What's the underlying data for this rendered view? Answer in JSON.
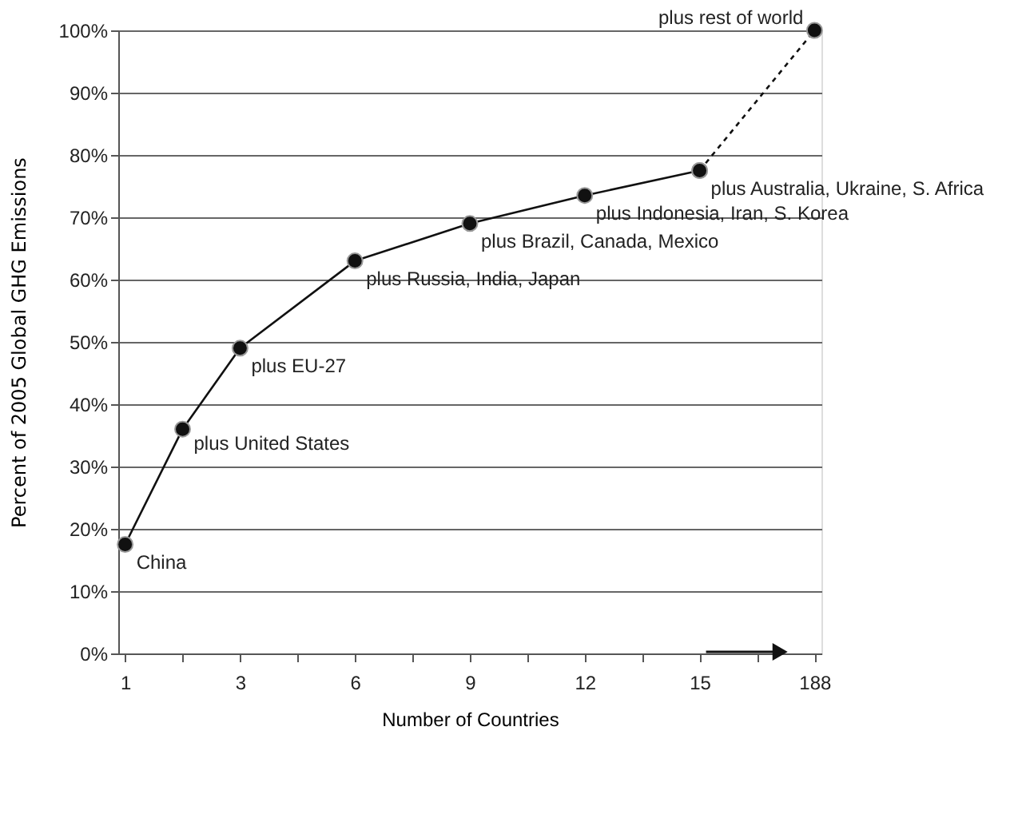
{
  "chart_data": {
    "type": "line",
    "xlabel": "Number of Countries",
    "ylabel": "Percent of 2005 Global GHG Emissions",
    "categories": [
      "1",
      null,
      "3",
      null,
      "6",
      null,
      "9",
      null,
      "12",
      null,
      "15",
      null,
      "188"
    ],
    "ylim": [
      0,
      100
    ],
    "yticks": [
      {
        "value": 0,
        "label": "0%"
      },
      {
        "value": 10,
        "label": "10%"
      },
      {
        "value": 20,
        "label": "20%"
      },
      {
        "value": 30,
        "label": "30%"
      },
      {
        "value": 40,
        "label": "40%"
      },
      {
        "value": 50,
        "label": "50%"
      },
      {
        "value": 60,
        "label": "60%"
      },
      {
        "value": 70,
        "label": "70%"
      },
      {
        "value": 80,
        "label": "80%"
      },
      {
        "value": 90,
        "label": "90%"
      },
      {
        "value": 100,
        "label": "100%"
      }
    ],
    "grid": "y",
    "marker": "circle",
    "series": [
      {
        "color": "#111111",
        "line_style": "solid",
        "values": [
          17.5,
          36,
          49,
          null,
          63,
          null,
          69,
          null,
          73.5,
          null,
          77.5,
          null,
          null
        ]
      },
      {
        "color": "#111111",
        "line_style": "dashed",
        "values": [
          null,
          null,
          null,
          null,
          null,
          null,
          null,
          null,
          null,
          null,
          77.5,
          null,
          100
        ]
      }
    ],
    "annotations": [
      {
        "text": "China",
        "x": "1",
        "y": 17.5
      },
      "plus United States",
      {
        "text": "plus  EU-27",
        "x": "3",
        "y": 49
      },
      {
        "text": "plus Russia, India, Japan",
        "x": "6",
        "y": 63
      },
      {
        "text": "plus Brazil, Canada, Mexico",
        "x": "9",
        "y": 69
      },
      {
        "text": "plus Indonesia, Iran, S. Korea",
        "x": "12",
        "y": 73.5
      },
      {
        "text": "plus Australia, Ukraine, S. Africa",
        "x": "15",
        "y": 77.5
      },
      {
        "text": "plus rest of world",
        "x": "188",
        "y": 100
      }
    ]
  }
}
